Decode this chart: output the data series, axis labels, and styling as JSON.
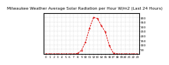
{
  "title": "Milwaukee Weather Average Solar Radiation per Hour W/m2 (Last 24 Hours)",
  "x_values": [
    0,
    1,
    2,
    3,
    4,
    5,
    6,
    7,
    8,
    9,
    10,
    11,
    12,
    13,
    14,
    15,
    16,
    17,
    18,
    19,
    20,
    21,
    22,
    23
  ],
  "y_values": [
    0,
    0,
    0,
    0,
    0,
    0,
    0,
    0,
    5,
    40,
    130,
    280,
    400,
    390,
    310,
    240,
    90,
    10,
    1,
    0,
    0,
    0,
    0,
    0
  ],
  "line_color": "#dd0000",
  "bg_color": "#ffffff",
  "plot_bg": "#ffffff",
  "ylim": [
    0,
    450
  ],
  "xlim": [
    -0.5,
    23.5
  ],
  "ytick_values": [
    50,
    100,
    150,
    200,
    250,
    300,
    350,
    400
  ],
  "ytick_labels": [
    "50",
    "100",
    "150",
    "200",
    "250",
    "300",
    "350",
    "400"
  ],
  "xtick_values": [
    0,
    1,
    2,
    3,
    4,
    5,
    6,
    7,
    8,
    9,
    10,
    11,
    12,
    13,
    14,
    15,
    16,
    17,
    18,
    19,
    20,
    21,
    22,
    23
  ],
  "grid_color": "#bbbbbb",
  "title_fontsize": 4.2,
  "tick_fontsize": 3.2
}
